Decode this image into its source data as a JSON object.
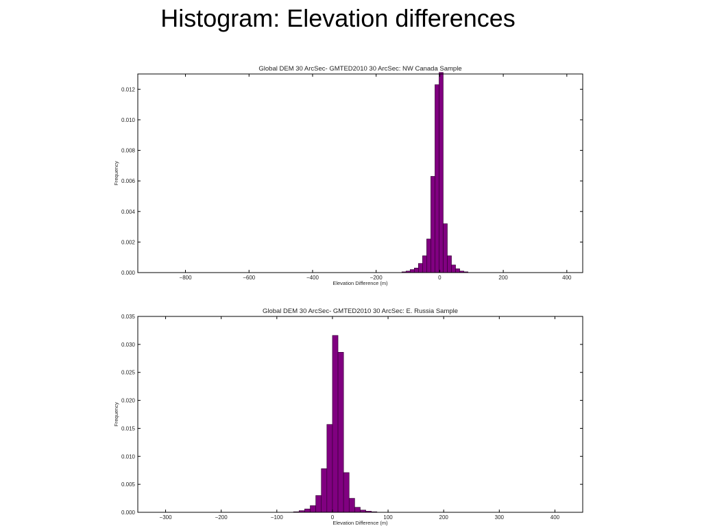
{
  "slide": {
    "title": "Histogram: Elevation differences"
  },
  "colors": {
    "bar_fill": "#800080",
    "bar_edge": "#2b002b",
    "axes": "#000000",
    "background": "#ffffff"
  },
  "chart_data": [
    {
      "type": "bar",
      "title": "Global DEM 30 ArcSec- GMTED2010 30 ArcSec: NW Canada Sample",
      "xlabel": "Elevation Difference (m)",
      "ylabel": "Frequency",
      "xlim": [
        -950,
        450
      ],
      "ylim": [
        0,
        0.013
      ],
      "xticks": [
        -800,
        -600,
        -400,
        -200,
        0,
        200,
        400
      ],
      "xtick_labels": [
        "−800",
        "−600",
        "−400",
        "−200",
        "0",
        "200",
        "400"
      ],
      "yticks": [
        0.0,
        0.002,
        0.004,
        0.006,
        0.008,
        0.01,
        0.012
      ],
      "ytick_labels": [
        "0.000",
        "0.002",
        "0.004",
        "0.006",
        "0.008",
        "0.010",
        "0.012"
      ],
      "grid": false,
      "bin_width": 13,
      "bins": [
        {
          "x": -119,
          "value": 5e-05
        },
        {
          "x": -106,
          "value": 0.0001
        },
        {
          "x": -93,
          "value": 0.0002
        },
        {
          "x": -80,
          "value": 0.0003
        },
        {
          "x": -67,
          "value": 0.0006
        },
        {
          "x": -54,
          "value": 0.0011
        },
        {
          "x": -41,
          "value": 0.0022
        },
        {
          "x": -28,
          "value": 0.0063
        },
        {
          "x": -15,
          "value": 0.0123
        },
        {
          "x": -2,
          "value": 0.0131
        },
        {
          "x": 11,
          "value": 0.0032
        },
        {
          "x": 24,
          "value": 0.0011
        },
        {
          "x": 37,
          "value": 0.0005
        },
        {
          "x": 50,
          "value": 0.00025
        },
        {
          "x": 63,
          "value": 0.0001
        },
        {
          "x": 76,
          "value": 5e-05
        }
      ]
    },
    {
      "type": "bar",
      "title": "Global DEM 30 ArcSec- GMTED2010 30 ArcSec: E. Russia Sample",
      "xlabel": "Elevation Difference (m)",
      "ylabel": "Frequency",
      "xlim": [
        -350,
        450
      ],
      "ylim": [
        0,
        0.035
      ],
      "xticks": [
        -300,
        -200,
        -100,
        0,
        100,
        200,
        300,
        400
      ],
      "xtick_labels": [
        "−300",
        "−200",
        "−100",
        "0",
        "100",
        "200",
        "300",
        "400"
      ],
      "yticks": [
        0.0,
        0.005,
        0.01,
        0.015,
        0.02,
        0.025,
        0.03,
        0.035
      ],
      "ytick_labels": [
        "0.000",
        "0.005",
        "0.010",
        "0.015",
        "0.020",
        "0.025",
        "0.030",
        "0.035"
      ],
      "grid": false,
      "bin_width": 10,
      "bins": [
        {
          "x": -70,
          "value": 0.0001
        },
        {
          "x": -60,
          "value": 0.0003
        },
        {
          "x": -50,
          "value": 0.0006
        },
        {
          "x": -40,
          "value": 0.0012
        },
        {
          "x": -30,
          "value": 0.003
        },
        {
          "x": -20,
          "value": 0.0078
        },
        {
          "x": -10,
          "value": 0.0157
        },
        {
          "x": 0,
          "value": 0.0316
        },
        {
          "x": 10,
          "value": 0.0286
        },
        {
          "x": 20,
          "value": 0.0071
        },
        {
          "x": 30,
          "value": 0.0025
        },
        {
          "x": 40,
          "value": 0.0009
        },
        {
          "x": 50,
          "value": 0.0004
        },
        {
          "x": 60,
          "value": 0.0002
        },
        {
          "x": 70,
          "value": 0.0001
        }
      ]
    }
  ]
}
